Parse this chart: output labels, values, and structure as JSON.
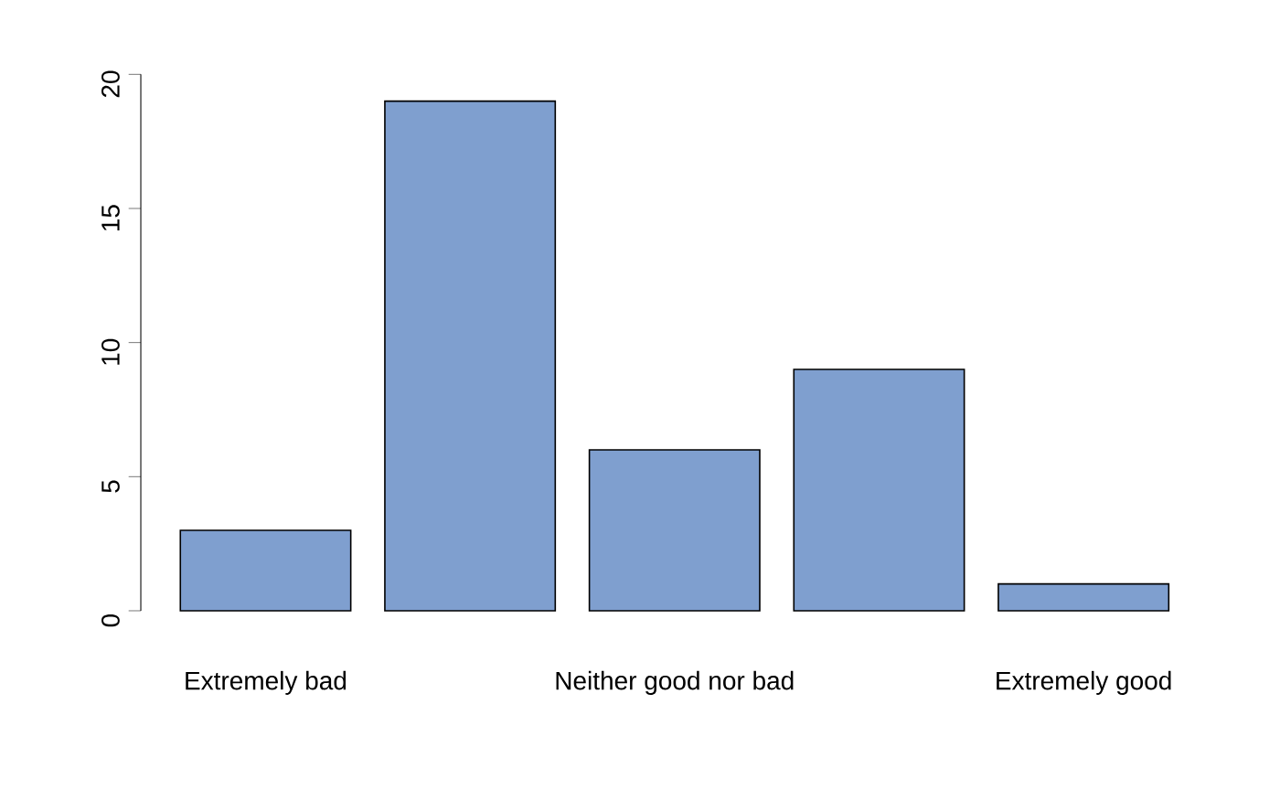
{
  "chart_data": {
    "type": "bar",
    "categories": [
      "Extremely bad",
      null,
      "Neither good nor bad",
      null,
      "Extremely good"
    ],
    "values": [
      3,
      19,
      6,
      9,
      1
    ],
    "color": "#7f9fcf",
    "ylim": [
      0,
      20
    ],
    "yticks": [
      0,
      5,
      10,
      15,
      20
    ]
  }
}
